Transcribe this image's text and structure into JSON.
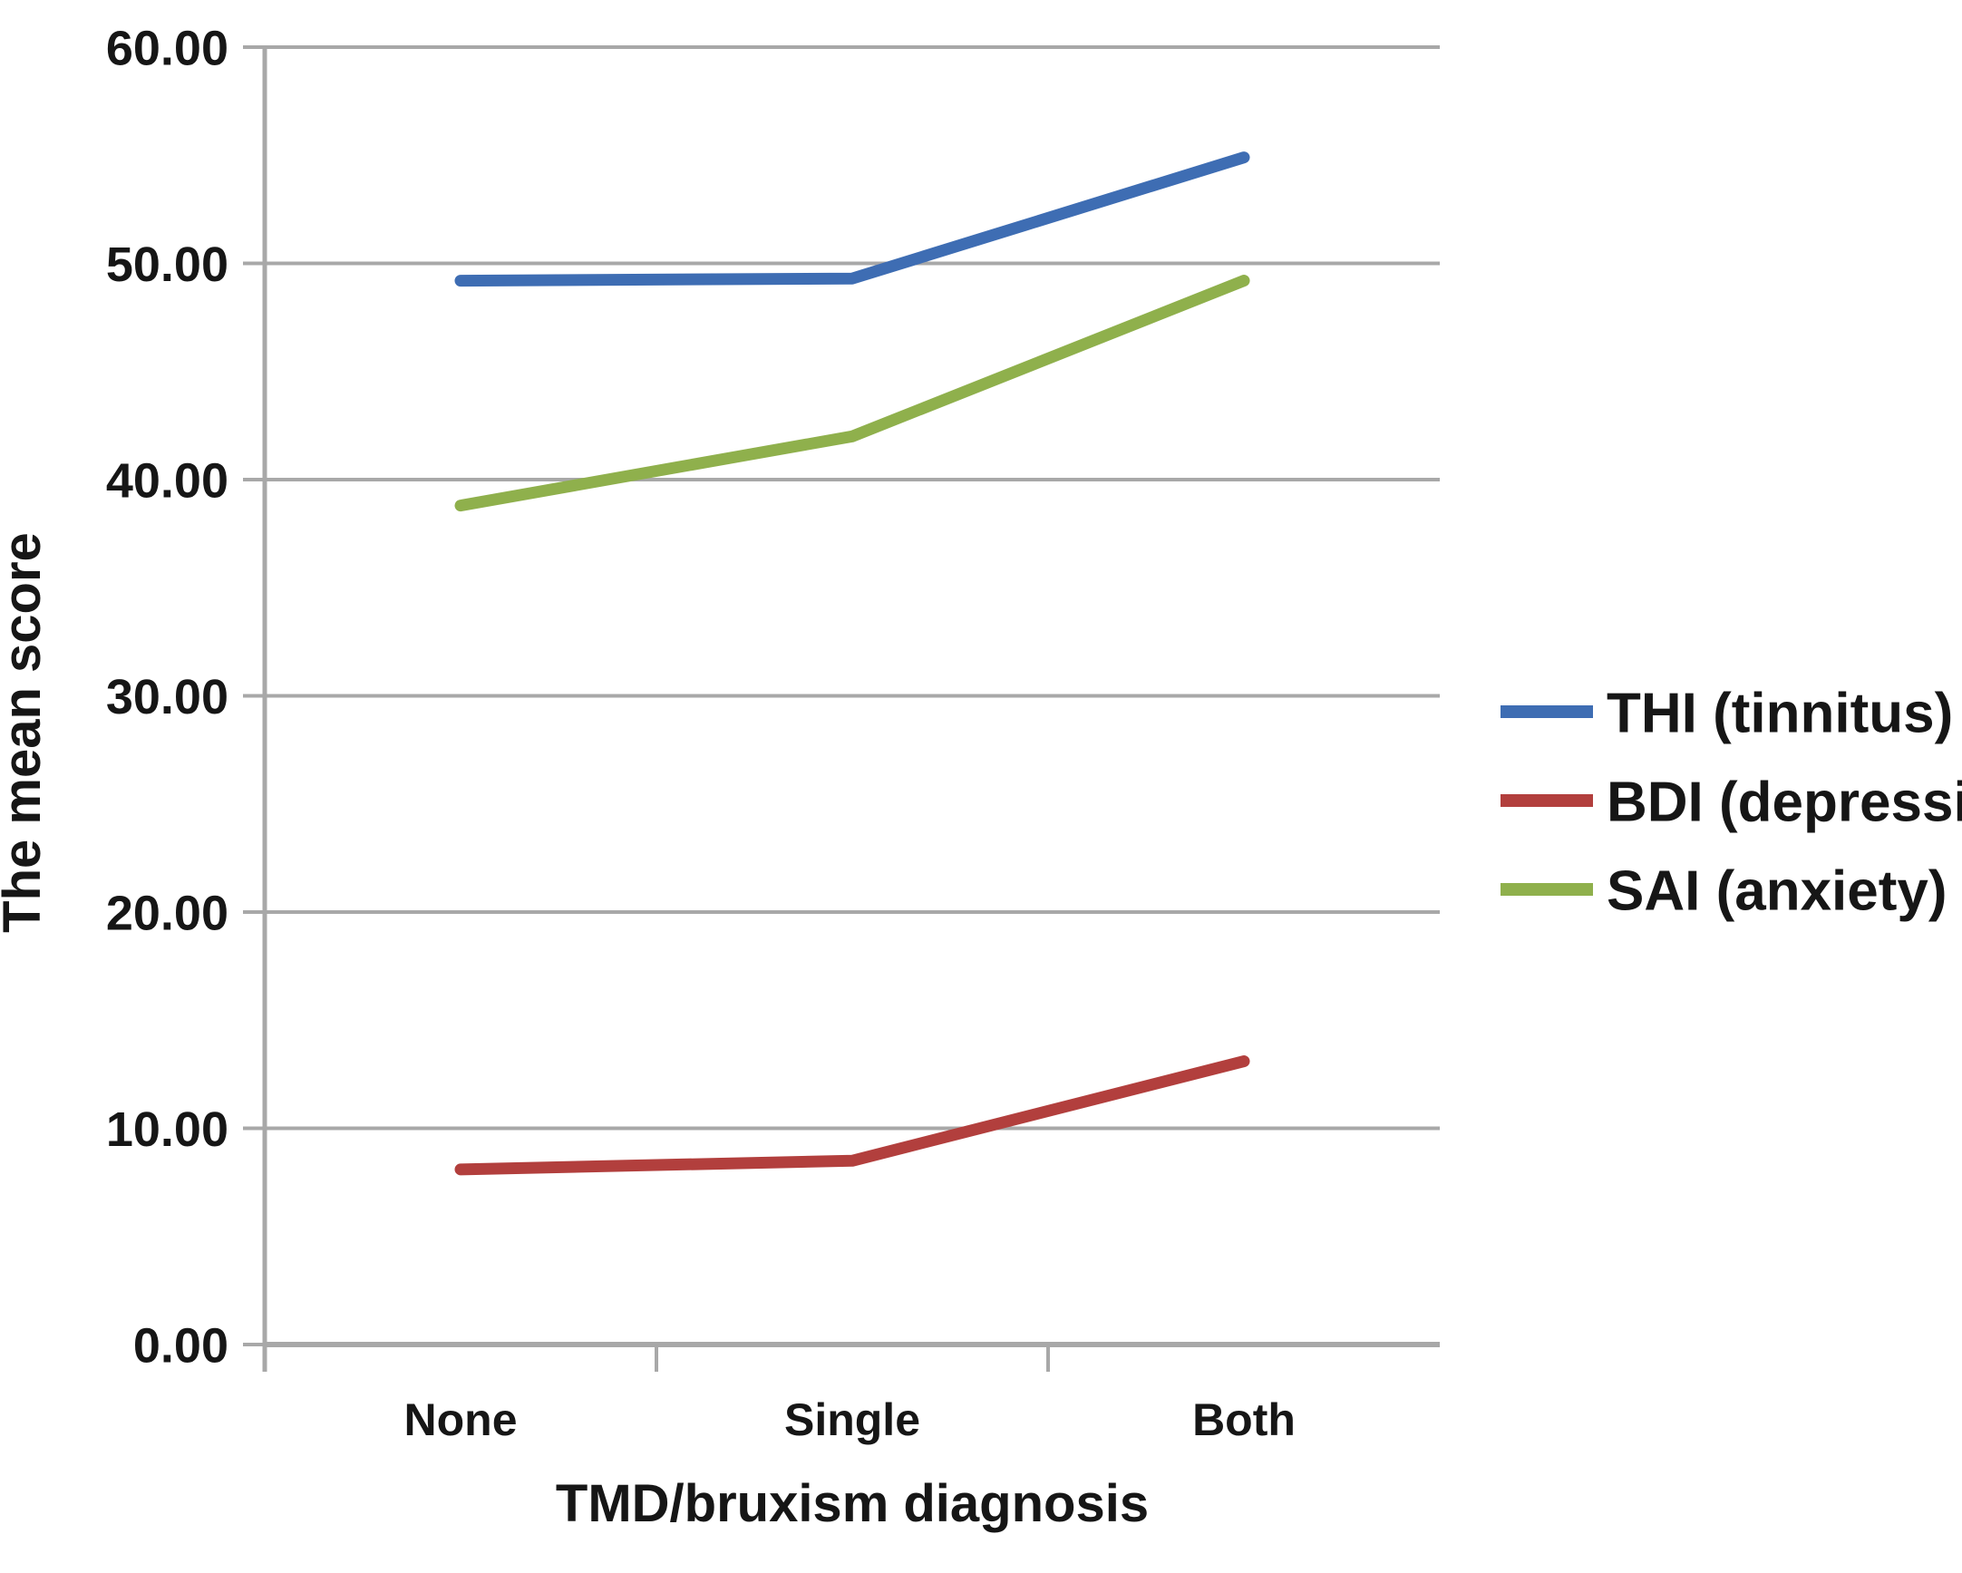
{
  "chart_data": {
    "type": "line",
    "categories": [
      "None",
      "Single",
      "Both"
    ],
    "series": [
      {
        "name": "THI (tinnitus)",
        "color": "#3E6DB3",
        "values": [
          49.2,
          49.3,
          54.9
        ]
      },
      {
        "name": "BDI (depression)",
        "color": "#B23F3D",
        "values": [
          8.1,
          8.5,
          13.1
        ]
      },
      {
        "name": "SAI (anxiety)",
        "color": "#8FB04C",
        "values": [
          38.8,
          42.0,
          49.2
        ]
      }
    ],
    "title": "",
    "xlabel": "TMD/bruxism diagnosis",
    "ylabel": "The mean score",
    "ylim": [
      0,
      60
    ],
    "ytick_step": 10,
    "ytick_labels": [
      "0.00",
      "10.00",
      "20.00",
      "30.00",
      "40.00",
      "50.00",
      "60.00"
    ],
    "grid": true,
    "grid_color": "#A8A8A8",
    "axis_color": "#A0A0A0",
    "text_color": "#161616",
    "legend_position": "right"
  }
}
